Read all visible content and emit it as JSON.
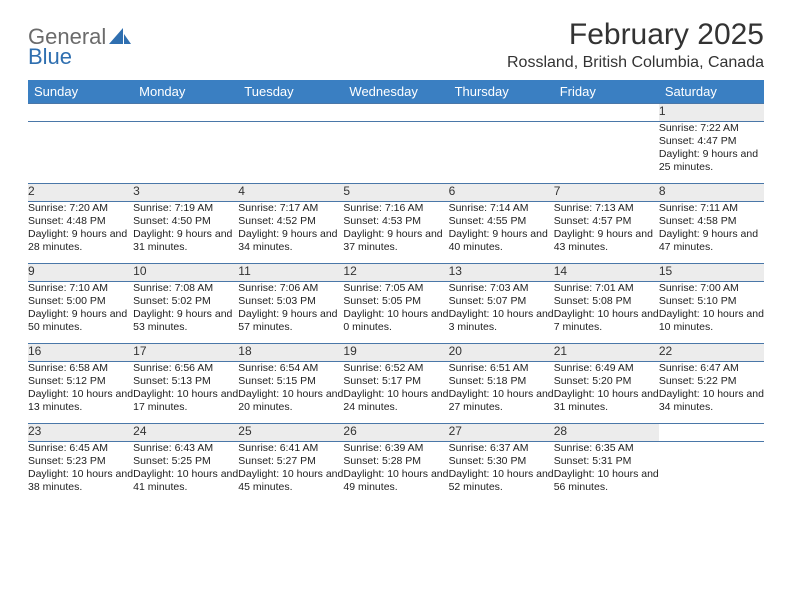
{
  "logo": {
    "word1": "General",
    "word2": "Blue"
  },
  "title": "February 2025",
  "location": "Rossland, British Columbia, Canada",
  "colors": {
    "header_bg": "#3a7fc2",
    "header_text": "#ffffff",
    "daynum_bg": "#ececec",
    "row_border": "#4a77a8",
    "logo_gray": "#6b6b6b",
    "logo_blue": "#2f6fb0"
  },
  "weekdays": [
    "Sunday",
    "Monday",
    "Tuesday",
    "Wednesday",
    "Thursday",
    "Friday",
    "Saturday"
  ],
  "weeks": [
    {
      "nums": [
        "",
        "",
        "",
        "",
        "",
        "",
        "1"
      ],
      "info": [
        "",
        "",
        "",
        "",
        "",
        "",
        "Sunrise: 7:22 AM\nSunset: 4:47 PM\nDaylight: 9 hours and 25 minutes."
      ]
    },
    {
      "nums": [
        "2",
        "3",
        "4",
        "5",
        "6",
        "7",
        "8"
      ],
      "info": [
        "Sunrise: 7:20 AM\nSunset: 4:48 PM\nDaylight: 9 hours and 28 minutes.",
        "Sunrise: 7:19 AM\nSunset: 4:50 PM\nDaylight: 9 hours and 31 minutes.",
        "Sunrise: 7:17 AM\nSunset: 4:52 PM\nDaylight: 9 hours and 34 minutes.",
        "Sunrise: 7:16 AM\nSunset: 4:53 PM\nDaylight: 9 hours and 37 minutes.",
        "Sunrise: 7:14 AM\nSunset: 4:55 PM\nDaylight: 9 hours and 40 minutes.",
        "Sunrise: 7:13 AM\nSunset: 4:57 PM\nDaylight: 9 hours and 43 minutes.",
        "Sunrise: 7:11 AM\nSunset: 4:58 PM\nDaylight: 9 hours and 47 minutes."
      ]
    },
    {
      "nums": [
        "9",
        "10",
        "11",
        "12",
        "13",
        "14",
        "15"
      ],
      "info": [
        "Sunrise: 7:10 AM\nSunset: 5:00 PM\nDaylight: 9 hours and 50 minutes.",
        "Sunrise: 7:08 AM\nSunset: 5:02 PM\nDaylight: 9 hours and 53 minutes.",
        "Sunrise: 7:06 AM\nSunset: 5:03 PM\nDaylight: 9 hours and 57 minutes.",
        "Sunrise: 7:05 AM\nSunset: 5:05 PM\nDaylight: 10 hours and 0 minutes.",
        "Sunrise: 7:03 AM\nSunset: 5:07 PM\nDaylight: 10 hours and 3 minutes.",
        "Sunrise: 7:01 AM\nSunset: 5:08 PM\nDaylight: 10 hours and 7 minutes.",
        "Sunrise: 7:00 AM\nSunset: 5:10 PM\nDaylight: 10 hours and 10 minutes."
      ]
    },
    {
      "nums": [
        "16",
        "17",
        "18",
        "19",
        "20",
        "21",
        "22"
      ],
      "info": [
        "Sunrise: 6:58 AM\nSunset: 5:12 PM\nDaylight: 10 hours and 13 minutes.",
        "Sunrise: 6:56 AM\nSunset: 5:13 PM\nDaylight: 10 hours and 17 minutes.",
        "Sunrise: 6:54 AM\nSunset: 5:15 PM\nDaylight: 10 hours and 20 minutes.",
        "Sunrise: 6:52 AM\nSunset: 5:17 PM\nDaylight: 10 hours and 24 minutes.",
        "Sunrise: 6:51 AM\nSunset: 5:18 PM\nDaylight: 10 hours and 27 minutes.",
        "Sunrise: 6:49 AM\nSunset: 5:20 PM\nDaylight: 10 hours and 31 minutes.",
        "Sunrise: 6:47 AM\nSunset: 5:22 PM\nDaylight: 10 hours and 34 minutes."
      ]
    },
    {
      "nums": [
        "23",
        "24",
        "25",
        "26",
        "27",
        "28",
        ""
      ],
      "info": [
        "Sunrise: 6:45 AM\nSunset: 5:23 PM\nDaylight: 10 hours and 38 minutes.",
        "Sunrise: 6:43 AM\nSunset: 5:25 PM\nDaylight: 10 hours and 41 minutes.",
        "Sunrise: 6:41 AM\nSunset: 5:27 PM\nDaylight: 10 hours and 45 minutes.",
        "Sunrise: 6:39 AM\nSunset: 5:28 PM\nDaylight: 10 hours and 49 minutes.",
        "Sunrise: 6:37 AM\nSunset: 5:30 PM\nDaylight: 10 hours and 52 minutes.",
        "Sunrise: 6:35 AM\nSunset: 5:31 PM\nDaylight: 10 hours and 56 minutes.",
        ""
      ]
    }
  ]
}
